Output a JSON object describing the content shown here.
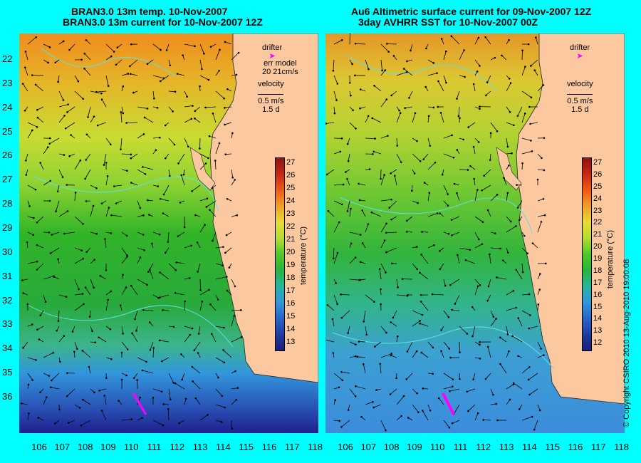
{
  "left_panel": {
    "title_line1": "BRAN3.0 13m temp. 10-Nov-2007",
    "title_line2": "BRAN3.0 13m current for 10-Nov-2007 12Z",
    "legend": {
      "drifter": "drifter",
      "err_model": "err model",
      "err_values": "20 21cm/s",
      "velocity": "velocity",
      "velocity_scale": "0.5 m/s",
      "velocity_time": "1.5 d"
    },
    "colorbar_ticks": [
      "27",
      "26",
      "25",
      "24",
      "23",
      "22",
      "21",
      "20",
      "19",
      "18",
      "17",
      "16",
      "15",
      "14",
      "13"
    ],
    "colorbar_label": "temperature (°C)"
  },
  "right_panel": {
    "title_line1": "Au6 Altimetric surface current for 09-Nov-2007 12Z",
    "title_line2": "3day AVHRR SST for 10-Nov-2007 00Z",
    "legend": {
      "drifter": "drifter",
      "velocity": "velocity",
      "velocity_scale": "0.5 m/s",
      "velocity_time": "1.5 d"
    },
    "colorbar_ticks": [
      "27",
      "26",
      "25",
      "24",
      "23",
      "22",
      "21",
      "20",
      "19",
      "18",
      "17",
      "16",
      "15",
      "14",
      "13",
      "12"
    ],
    "colorbar_label": "temperature (°C)"
  },
  "y_axis_labels": [
    "22",
    "23",
    "24",
    "25",
    "26",
    "27",
    "28",
    "29",
    "30",
    "31",
    "32",
    "33",
    "34",
    "35",
    "36"
  ],
  "x_axis_labels": [
    "106",
    "107",
    "108",
    "109",
    "110",
    "111",
    "112",
    "113",
    "114",
    "115",
    "116",
    "117",
    "118"
  ],
  "copyright": "© Copyright CSIRO 2010   13-Aug-2010 19:00:08",
  "colors": {
    "background": "#00ffff",
    "land": "#fcc8a0",
    "warm": "#f08c1e",
    "mid": "#e6e632",
    "green": "#28b428",
    "cool": "#3296dc",
    "cold": "#1e1e8c",
    "drifter": "#ff00ff",
    "contour": "#60e0e0"
  }
}
